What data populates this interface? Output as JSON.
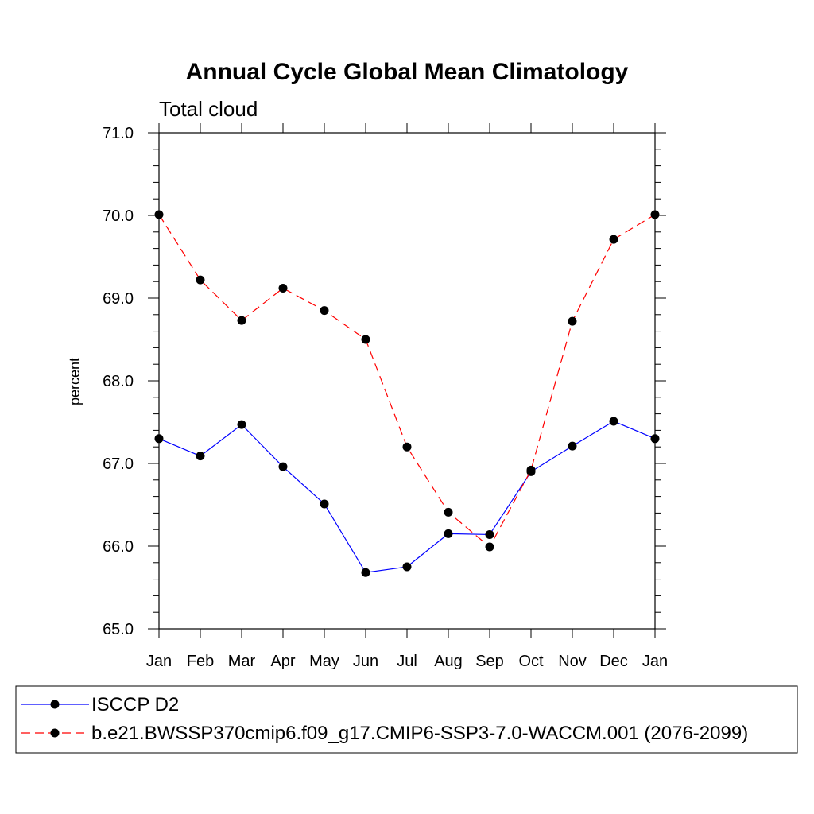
{
  "chart_data": {
    "type": "line",
    "title": "Annual Cycle Global Mean Climatology",
    "subtitle": "Total cloud",
    "xlabel": "",
    "ylabel": "percent",
    "categories": [
      "Jan",
      "Feb",
      "Mar",
      "Apr",
      "May",
      "Jun",
      "Jul",
      "Aug",
      "Sep",
      "Oct",
      "Nov",
      "Dec",
      "Jan"
    ],
    "ylim": [
      65.0,
      71.0
    ],
    "yticks": [
      65.0,
      66.0,
      67.0,
      68.0,
      69.0,
      70.0,
      71.0
    ],
    "ytick_labels": [
      "65.0",
      "66.0",
      "67.0",
      "68.0",
      "69.0",
      "70.0",
      "71.0"
    ],
    "grid": false,
    "legend_position": "bottom",
    "series": [
      {
        "name": "ISCCP D2",
        "color": "#0000ff",
        "dash": "solid",
        "values": [
          67.3,
          67.09,
          67.47,
          66.96,
          66.51,
          65.68,
          65.75,
          66.15,
          66.14,
          66.9,
          67.21,
          67.51,
          67.3
        ]
      },
      {
        "name": "b.e21.BWSSP370cmip6.f09_g17.CMIP6-SSP3-7.0-WACCM.001 (2076-2099)",
        "color": "#ff0000",
        "dash": "dashed",
        "values": [
          70.01,
          69.22,
          68.73,
          69.12,
          68.85,
          68.5,
          67.2,
          66.41,
          65.99,
          66.92,
          68.72,
          69.71,
          70.01
        ]
      }
    ]
  }
}
